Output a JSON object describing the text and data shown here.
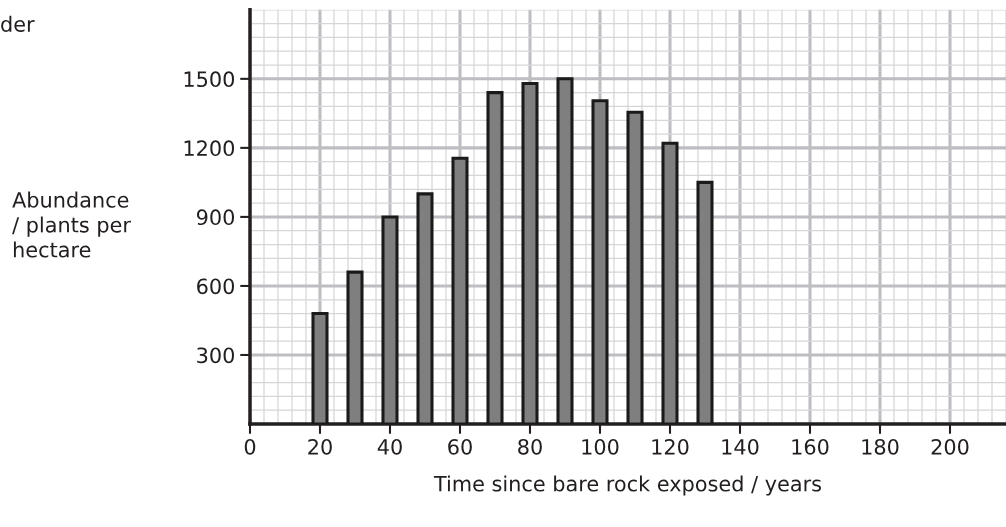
{
  "chart_data": {
    "type": "bar",
    "xlabel": "Time since bare rock exposed / years",
    "ylabel": "Abundance\n/ plants per\nhectare",
    "annotations": [
      "der"
    ],
    "x": [
      20,
      30,
      40,
      50,
      60,
      70,
      80,
      90,
      100,
      110,
      120,
      130
    ],
    "values": [
      480,
      660,
      900,
      1000,
      1155,
      1440,
      1480,
      1500,
      1405,
      1355,
      1220,
      1050
    ],
    "color": "#7f7f7f",
    "xlim": [
      0,
      216
    ],
    "xticks": [
      0,
      20,
      40,
      60,
      80,
      100,
      120,
      140,
      160,
      180,
      200
    ],
    "ylim": [
      0,
      1800
    ],
    "yticks": [
      300,
      600,
      900,
      1200,
      1500
    ],
    "grid": true
  }
}
